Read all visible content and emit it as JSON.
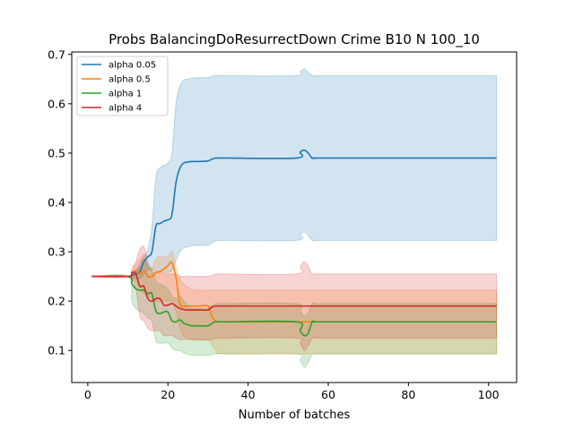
{
  "chart_data": {
    "type": "line",
    "title": "Probs BalancingDoResurrectDown Crime B10 N 100_10",
    "xlabel": "Number of batches",
    "ylabel": "",
    "xlim": [
      -4,
      107
    ],
    "ylim": [
      0.035,
      0.705
    ],
    "xticks": [
      0,
      20,
      40,
      60,
      80,
      100
    ],
    "yticks": [
      0.1,
      0.2,
      0.3,
      0.4,
      0.5,
      0.6,
      0.7
    ],
    "xtick_labels": [
      "0",
      "20",
      "40",
      "60",
      "80",
      "100"
    ],
    "ytick_labels": [
      "0.1",
      "0.2",
      "0.3",
      "0.4",
      "0.5",
      "0.6",
      "0.7"
    ],
    "grid": false,
    "legend_position": "top-left",
    "series": [
      {
        "name": "alpha 0.05",
        "color": "#1f77b4",
        "x": [
          1,
          10,
          11,
          12,
          13,
          14,
          15,
          16,
          17,
          18,
          19,
          20,
          21,
          22,
          23,
          24,
          25,
          26,
          28,
          30,
          31,
          32,
          34,
          52,
          53,
          54,
          55,
          56,
          57,
          60,
          102
        ],
        "y": [
          0.25,
          0.25,
          0.252,
          0.255,
          0.26,
          0.28,
          0.29,
          0.3,
          0.352,
          0.357,
          0.362,
          0.365,
          0.375,
          0.44,
          0.47,
          0.48,
          0.482,
          0.483,
          0.483,
          0.484,
          0.488,
          0.49,
          0.49,
          0.49,
          0.502,
          0.506,
          0.5,
          0.49,
          0.49,
          0.49,
          0.49
        ],
        "upper": [
          0.25,
          0.25,
          0.255,
          0.262,
          0.275,
          0.29,
          0.305,
          0.35,
          0.45,
          0.47,
          0.475,
          0.48,
          0.5,
          0.6,
          0.635,
          0.648,
          0.65,
          0.652,
          0.653,
          0.653,
          0.656,
          0.657,
          0.657,
          0.657,
          0.665,
          0.67,
          0.664,
          0.657,
          0.657,
          0.657,
          0.657
        ],
        "lower": [
          0.25,
          0.25,
          0.248,
          0.245,
          0.245,
          0.255,
          0.265,
          0.265,
          0.26,
          0.26,
          0.258,
          0.258,
          0.262,
          0.282,
          0.3,
          0.308,
          0.31,
          0.312,
          0.313,
          0.313,
          0.318,
          0.322,
          0.323,
          0.323,
          0.335,
          0.34,
          0.333,
          0.323,
          0.323,
          0.323,
          0.323
        ]
      },
      {
        "name": "alpha 0.5",
        "color": "#ff7f0e",
        "x": [
          1,
          10,
          11,
          12,
          13,
          14,
          15,
          16,
          17,
          18,
          19,
          20,
          21,
          22,
          23,
          24,
          25,
          26,
          28,
          30,
          31,
          32,
          34,
          52,
          53,
          54,
          55,
          56,
          57,
          60,
          102
        ],
        "y": [
          0.25,
          0.25,
          0.255,
          0.262,
          0.255,
          0.262,
          0.25,
          0.25,
          0.258,
          0.26,
          0.265,
          0.272,
          0.278,
          0.248,
          0.195,
          0.19,
          0.19,
          0.19,
          0.19,
          0.19,
          0.168,
          0.16,
          0.158,
          0.158,
          0.158,
          0.158,
          0.158,
          0.158,
          0.158,
          0.158,
          0.158
        ],
        "upper": [
          0.25,
          0.25,
          0.26,
          0.275,
          0.285,
          0.295,
          0.27,
          0.265,
          0.285,
          0.29,
          0.29,
          0.29,
          0.3,
          0.27,
          0.245,
          0.235,
          0.228,
          0.224,
          0.222,
          0.222,
          0.222,
          0.222,
          0.222,
          0.222,
          0.222,
          0.222,
          0.222,
          0.222,
          0.222,
          0.222,
          0.222
        ],
        "lower": [
          0.25,
          0.25,
          0.245,
          0.24,
          0.225,
          0.215,
          0.21,
          0.205,
          0.2,
          0.2,
          0.2,
          0.2,
          0.2,
          0.18,
          0.145,
          0.13,
          0.125,
          0.122,
          0.12,
          0.12,
          0.11,
          0.1,
          0.093,
          0.093,
          0.093,
          0.093,
          0.093,
          0.093,
          0.093,
          0.093,
          0.093
        ]
      },
      {
        "name": "alpha 1",
        "color": "#2ca02c",
        "x": [
          1,
          10,
          11,
          12,
          13,
          14,
          15,
          16,
          17,
          18,
          19,
          20,
          21,
          22,
          23,
          24,
          25,
          26,
          28,
          30,
          31,
          32,
          34,
          52,
          53,
          54,
          55,
          56,
          57,
          60,
          102
        ],
        "y": [
          0.25,
          0.25,
          0.235,
          0.225,
          0.222,
          0.222,
          0.215,
          0.215,
          0.18,
          0.175,
          0.178,
          0.178,
          0.16,
          0.158,
          0.162,
          0.155,
          0.152,
          0.15,
          0.15,
          0.15,
          0.155,
          0.158,
          0.158,
          0.158,
          0.14,
          0.13,
          0.135,
          0.158,
          0.158,
          0.158,
          0.158
        ],
        "upper": [
          0.25,
          0.25,
          0.255,
          0.262,
          0.27,
          0.285,
          0.27,
          0.265,
          0.24,
          0.235,
          0.23,
          0.225,
          0.21,
          0.205,
          0.21,
          0.2,
          0.19,
          0.185,
          0.185,
          0.185,
          0.19,
          0.195,
          0.195,
          0.195,
          0.18,
          0.17,
          0.175,
          0.195,
          0.195,
          0.195,
          0.195
        ],
        "lower": [
          0.25,
          0.25,
          0.2,
          0.185,
          0.18,
          0.175,
          0.165,
          0.16,
          0.12,
          0.115,
          0.115,
          0.115,
          0.105,
          0.1,
          0.1,
          0.095,
          0.092,
          0.09,
          0.09,
          0.09,
          0.092,
          0.093,
          0.093,
          0.093,
          0.08,
          0.066,
          0.075,
          0.093,
          0.093,
          0.093,
          0.093
        ]
      },
      {
        "name": "alpha 4",
        "color": "#d62728",
        "x": [
          1,
          10,
          11,
          12,
          13,
          14,
          15,
          16,
          17,
          18,
          19,
          20,
          21,
          22,
          23,
          24,
          25,
          26,
          28,
          30,
          31,
          32,
          34,
          52,
          53,
          54,
          55,
          56,
          57,
          60,
          102
        ],
        "y": [
          0.25,
          0.25,
          0.258,
          0.255,
          0.23,
          0.23,
          0.205,
          0.2,
          0.205,
          0.205,
          0.192,
          0.192,
          0.195,
          0.19,
          0.185,
          0.183,
          0.182,
          0.182,
          0.182,
          0.182,
          0.188,
          0.19,
          0.19,
          0.19,
          0.19,
          0.19,
          0.19,
          0.19,
          0.19,
          0.19,
          0.19
        ],
        "upper": [
          0.25,
          0.25,
          0.265,
          0.28,
          0.305,
          0.31,
          0.28,
          0.26,
          0.258,
          0.258,
          0.255,
          0.255,
          0.255,
          0.255,
          0.25,
          0.25,
          0.25,
          0.25,
          0.25,
          0.25,
          0.252,
          0.255,
          0.255,
          0.255,
          0.27,
          0.28,
          0.27,
          0.255,
          0.255,
          0.255,
          0.255
        ],
        "lower": [
          0.25,
          0.25,
          0.245,
          0.225,
          0.17,
          0.16,
          0.145,
          0.14,
          0.14,
          0.14,
          0.13,
          0.13,
          0.13,
          0.125,
          0.122,
          0.122,
          0.122,
          0.122,
          0.122,
          0.122,
          0.122,
          0.125,
          0.125,
          0.125,
          0.115,
          0.1,
          0.11,
          0.125,
          0.125,
          0.125,
          0.125
        ]
      }
    ]
  }
}
